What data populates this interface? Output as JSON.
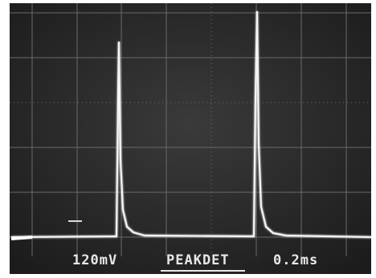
{
  "readout": {
    "volts_per_div": "120mV",
    "mode": "PEAKDET",
    "time_per_div": "0.2ms"
  }
}
